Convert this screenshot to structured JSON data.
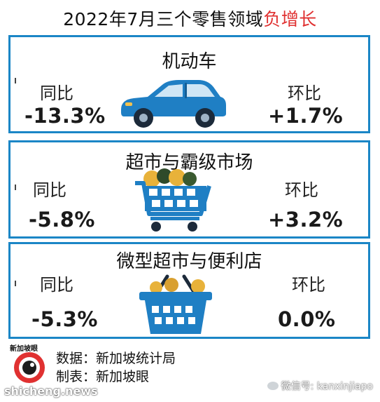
{
  "header": {
    "title_main": "2022年7月三个零售领域",
    "title_highlight": "负增长"
  },
  "sections": [
    {
      "title": "机动车",
      "yoy_label": "同比",
      "yoy_value": "-13.3%",
      "mom_label": "环比",
      "mom_value": "+1.7%",
      "icon": "car-icon"
    },
    {
      "title": "超市与霸级市场",
      "yoy_label": "同比",
      "yoy_value": "-5.8%",
      "mom_label": "环比",
      "mom_value": "+3.2%",
      "icon": "shopping-cart-icon"
    },
    {
      "title": "微型超市与便利店",
      "yoy_label": "同比",
      "yoy_value": "-5.3%",
      "mom_label": "环比",
      "mom_value": "0.0%",
      "icon": "shopping-basket-icon"
    }
  ],
  "footer": {
    "logo_text": "新加坡眼",
    "source": "数据：新加坡统计局",
    "made_by": "制表：新加坡眼"
  },
  "watermarks": {
    "left": "shicheng.news",
    "right": "微信号: kanxinjiapo"
  },
  "colors": {
    "border": "#1b86c6",
    "negative": "#e03131",
    "icon_blue": "#1f7fc4"
  }
}
